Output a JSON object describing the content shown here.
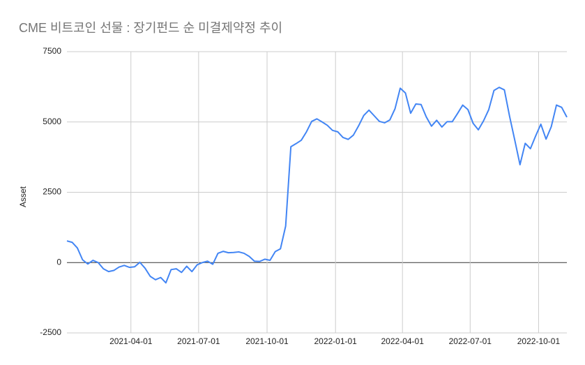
{
  "chart_data": {
    "type": "line",
    "title": "CME 비트코인 선물 : 장기펀드 순 미결제약정 추이",
    "y_label": "Asset",
    "x": [
      "2021-01-05",
      "2021-01-12",
      "2021-01-19",
      "2021-01-26",
      "2021-02-02",
      "2021-02-09",
      "2021-02-16",
      "2021-02-23",
      "2021-03-02",
      "2021-03-09",
      "2021-03-16",
      "2021-03-23",
      "2021-03-30",
      "2021-04-06",
      "2021-04-13",
      "2021-04-20",
      "2021-04-27",
      "2021-05-04",
      "2021-05-11",
      "2021-05-18",
      "2021-05-25",
      "2021-06-01",
      "2021-06-08",
      "2021-06-15",
      "2021-06-22",
      "2021-06-29",
      "2021-07-06",
      "2021-07-13",
      "2021-07-20",
      "2021-07-27",
      "2021-08-03",
      "2021-08-10",
      "2021-08-17",
      "2021-08-24",
      "2021-08-31",
      "2021-09-07",
      "2021-09-14",
      "2021-09-21",
      "2021-09-28",
      "2021-10-05",
      "2021-10-12",
      "2021-10-19",
      "2021-10-26",
      "2021-11-02",
      "2021-11-09",
      "2021-11-16",
      "2021-11-23",
      "2021-11-30",
      "2021-12-07",
      "2021-12-14",
      "2021-12-21",
      "2021-12-28",
      "2022-01-04",
      "2022-01-11",
      "2022-01-18",
      "2022-01-25",
      "2022-02-01",
      "2022-02-08",
      "2022-02-15",
      "2022-02-22",
      "2022-03-01",
      "2022-03-08",
      "2022-03-15",
      "2022-03-22",
      "2022-03-29",
      "2022-04-05",
      "2022-04-12",
      "2022-04-19",
      "2022-04-26",
      "2022-05-03",
      "2022-05-10",
      "2022-05-17",
      "2022-05-24",
      "2022-05-31",
      "2022-06-07",
      "2022-06-14",
      "2022-06-21",
      "2022-06-28",
      "2022-07-05",
      "2022-07-12",
      "2022-07-19",
      "2022-07-26",
      "2022-08-02",
      "2022-08-09",
      "2022-08-16",
      "2022-08-23",
      "2022-08-30",
      "2022-09-06",
      "2022-09-13",
      "2022-09-20",
      "2022-09-27",
      "2022-10-04",
      "2022-10-11",
      "2022-10-18",
      "2022-10-25",
      "2022-11-01",
      "2022-11-08"
    ],
    "series": [
      {
        "name": "Asset",
        "color": "#4285f4",
        "values": [
          770,
          720,
          520,
          100,
          -50,
          80,
          0,
          -220,
          -320,
          -280,
          -160,
          -100,
          -170,
          -150,
          10,
          -200,
          -490,
          -610,
          -530,
          -720,
          -250,
          -220,
          -350,
          -130,
          -320,
          -80,
          0,
          50,
          -60,
          330,
          400,
          350,
          360,
          380,
          330,
          220,
          50,
          40,
          120,
          80,
          390,
          490,
          1300,
          4120,
          4230,
          4350,
          4650,
          5020,
          5110,
          5000,
          4880,
          4700,
          4650,
          4450,
          4380,
          4530,
          4860,
          5230,
          5420,
          5220,
          5020,
          4970,
          5070,
          5470,
          6200,
          6030,
          5310,
          5640,
          5620,
          5180,
          4850,
          5060,
          4820,
          5010,
          5010,
          5300,
          5600,
          5440,
          4950,
          4720,
          5040,
          5440,
          6120,
          6230,
          6140,
          5200,
          4350,
          3480,
          4240,
          4050,
          4500,
          4920,
          4390,
          4830,
          5600,
          5520,
          5170
        ]
      }
    ],
    "xlim": [
      "2021-01-05",
      "2022-11-08"
    ],
    "xticks": [
      "2021-04-01",
      "2021-07-01",
      "2021-10-01",
      "2022-01-01",
      "2022-04-01",
      "2022-07-01",
      "2022-10-01"
    ],
    "ylim": [
      -2500,
      7500
    ],
    "yticks": [
      -2500,
      0,
      2500,
      5000,
      7500
    ],
    "grid": true
  }
}
